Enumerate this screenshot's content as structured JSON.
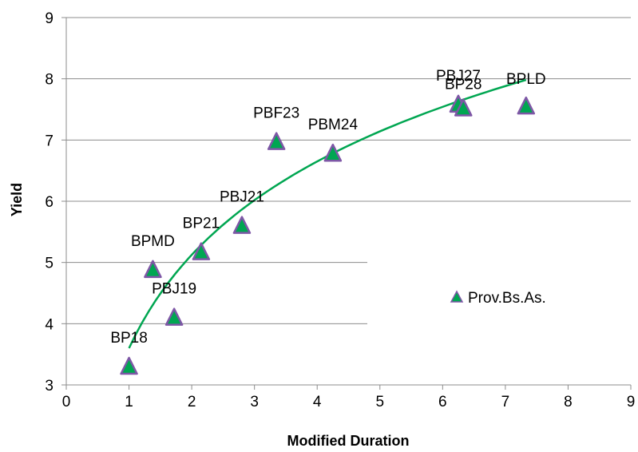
{
  "chart_data": {
    "type": "scatter",
    "xlabel": "Modified Duration",
    "ylabel": "Yield",
    "xlim": [
      0,
      9
    ],
    "ylim": [
      3,
      9
    ],
    "x_ticks": [
      "0",
      "1",
      "2",
      "3",
      "4",
      "5",
      "6",
      "7",
      "8",
      "9"
    ],
    "y_ticks": [
      "3",
      "4",
      "5",
      "6",
      "7",
      "8",
      "9"
    ],
    "grid": "horizontal",
    "legend_position": "right",
    "series": [
      {
        "name": "Prov.Bs.As.",
        "marker": "triangle",
        "fill_color": "#00A651",
        "edge_color": "#7E57A6",
        "points": [
          {
            "label": "BP18",
            "x": 1.0,
            "y": 3.3
          },
          {
            "label": "PBJ19",
            "x": 1.72,
            "y": 4.1
          },
          {
            "label": "BPMD",
            "x": 1.38,
            "y": 4.88
          },
          {
            "label": "BP21",
            "x": 2.15,
            "y": 5.17
          },
          {
            "label": "PBJ21",
            "x": 2.8,
            "y": 5.6
          },
          {
            "label": "PBF23",
            "x": 3.35,
            "y": 6.97
          },
          {
            "label": "PBM24",
            "x": 4.25,
            "y": 6.78
          },
          {
            "label": "PBJ27",
            "x": 6.25,
            "y": 7.58
          },
          {
            "label": "BP28",
            "x": 6.33,
            "y": 7.52
          },
          {
            "label": "BPLD",
            "x": 7.33,
            "y": 7.55
          }
        ]
      }
    ],
    "trendline": {
      "type": "logarithmic",
      "color": "#00A651",
      "x_range": [
        1.0,
        7.33
      ],
      "coef_a": 3.6,
      "coef_b": 2.2
    }
  }
}
